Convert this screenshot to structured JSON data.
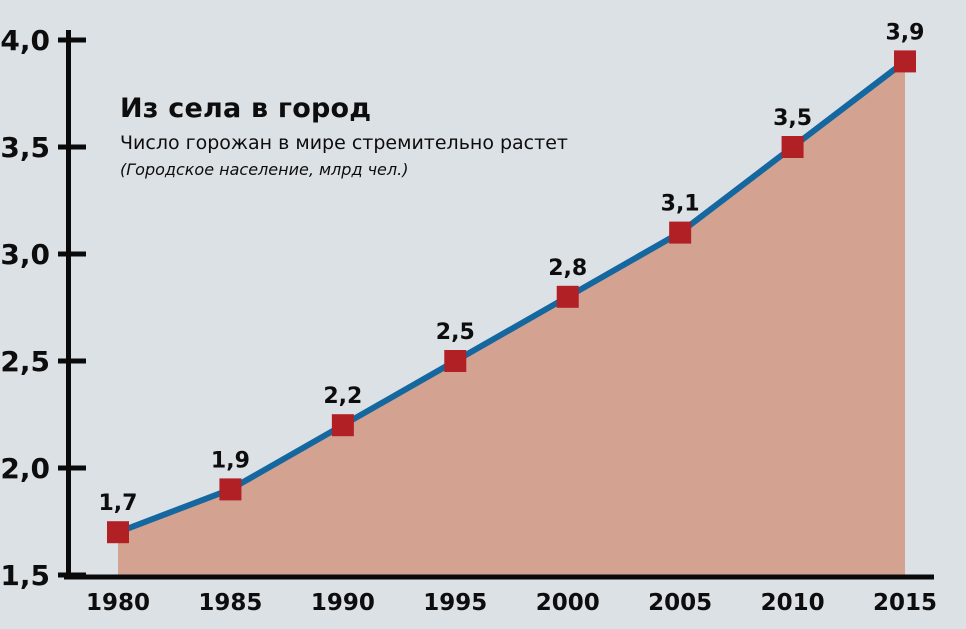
{
  "chart_data": {
    "type": "area",
    "title": "Из села в город",
    "subtitle": "Число горожан в мире стремительно растет",
    "unit_note": "(Городское население, млрд чел.)",
    "categories": [
      "1980",
      "1985",
      "1990",
      "1995",
      "2000",
      "2005",
      "2010",
      "2015"
    ],
    "values": [
      1.7,
      1.9,
      2.2,
      2.5,
      2.8,
      3.1,
      3.5,
      3.9
    ],
    "point_labels": [
      "1,7",
      "1,9",
      "2,2",
      "2,5",
      "2,8",
      "3,1",
      "3,5",
      "3,9"
    ],
    "y_ticks": [
      {
        "value": 1.5,
        "label": "1,5"
      },
      {
        "value": 2.0,
        "label": "2,0"
      },
      {
        "value": 2.5,
        "label": "2,5"
      },
      {
        "value": 3.0,
        "label": "3,0"
      },
      {
        "value": 3.5,
        "label": "3,5"
      },
      {
        "value": 4.0,
        "label": "4,0"
      }
    ],
    "ylim": [
      1.5,
      4.0
    ],
    "grid": false,
    "legend": false,
    "colors": {
      "background": "#dce1e6",
      "line": "#15679f",
      "marker": "#b02025",
      "area_fill": "#d4a291",
      "axis": "#0a0a0a",
      "text": "#0d0d0d"
    }
  }
}
